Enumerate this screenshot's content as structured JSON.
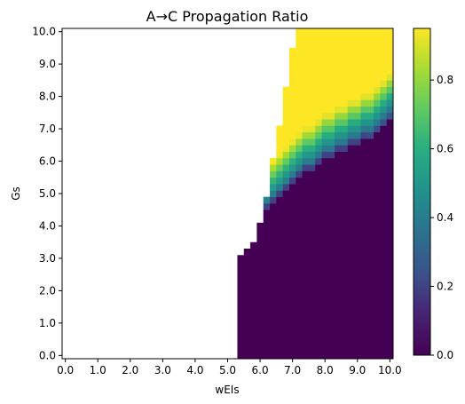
{
  "chart_data": {
    "type": "heatmap",
    "title": "A→C Propagation Ratio",
    "xlabel": "wEIs",
    "ylabel": "Gs",
    "xlim": [
      -0.1,
      10.1
    ],
    "ylim": [
      -0.1,
      10.1
    ],
    "x_ticks": [
      "0.0",
      "1.0",
      "2.0",
      "3.0",
      "4.0",
      "5.0",
      "6.0",
      "7.0",
      "8.0",
      "9.0",
      "10.0"
    ],
    "y_ticks": [
      "0.0",
      "1.0",
      "2.0",
      "3.0",
      "4.0",
      "5.0",
      "6.0",
      "7.0",
      "8.0",
      "9.0",
      "10.0"
    ],
    "colormap": "viridis",
    "color_range": [
      0.0,
      0.95
    ],
    "colorbar_ticks": [
      "0.0",
      "0.2",
      "0.4",
      "0.6",
      "0.8"
    ],
    "grid": false,
    "grid_step": 0.2,
    "zero_region_start_x": 5.4,
    "zero_region_top_y": [
      [
        5.4,
        3.0
      ],
      [
        5.6,
        3.2
      ],
      [
        5.8,
        3.4
      ],
      [
        6.0,
        4.0
      ],
      [
        6.2,
        4.4
      ],
      [
        6.4,
        4.6
      ],
      [
        6.6,
        4.8
      ],
      [
        6.8,
        5.0
      ],
      [
        7.0,
        5.2
      ],
      [
        7.2,
        5.4
      ],
      [
        7.4,
        5.6
      ],
      [
        7.6,
        5.6
      ],
      [
        7.8,
        5.8
      ],
      [
        8.0,
        6.0
      ],
      [
        8.2,
        6.0
      ],
      [
        8.4,
        6.2
      ],
      [
        8.6,
        6.2
      ],
      [
        8.8,
        6.4
      ],
      [
        9.0,
        6.4
      ],
      [
        9.2,
        6.6
      ],
      [
        9.4,
        6.6
      ],
      [
        9.6,
        6.8
      ],
      [
        9.8,
        7.0
      ],
      [
        10.0,
        7.2
      ]
    ],
    "upper_boundary_y": [
      [
        6.2,
        4.8
      ],
      [
        6.4,
        6.0
      ],
      [
        6.6,
        7.0
      ],
      [
        6.8,
        8.2
      ],
      [
        7.0,
        9.4
      ],
      [
        7.2,
        10.0
      ],
      [
        7.4,
        10.0
      ],
      [
        7.6,
        10.0
      ],
      [
        7.8,
        10.0
      ],
      [
        8.0,
        10.0
      ],
      [
        8.2,
        10.0
      ],
      [
        8.4,
        10.0
      ],
      [
        8.6,
        10.0
      ],
      [
        8.8,
        10.0
      ],
      [
        9.0,
        10.0
      ],
      [
        9.2,
        10.0
      ],
      [
        9.4,
        10.0
      ],
      [
        9.6,
        10.0
      ],
      [
        9.8,
        10.0
      ],
      [
        10.0,
        10.0
      ]
    ],
    "peak_value": 0.95
  }
}
